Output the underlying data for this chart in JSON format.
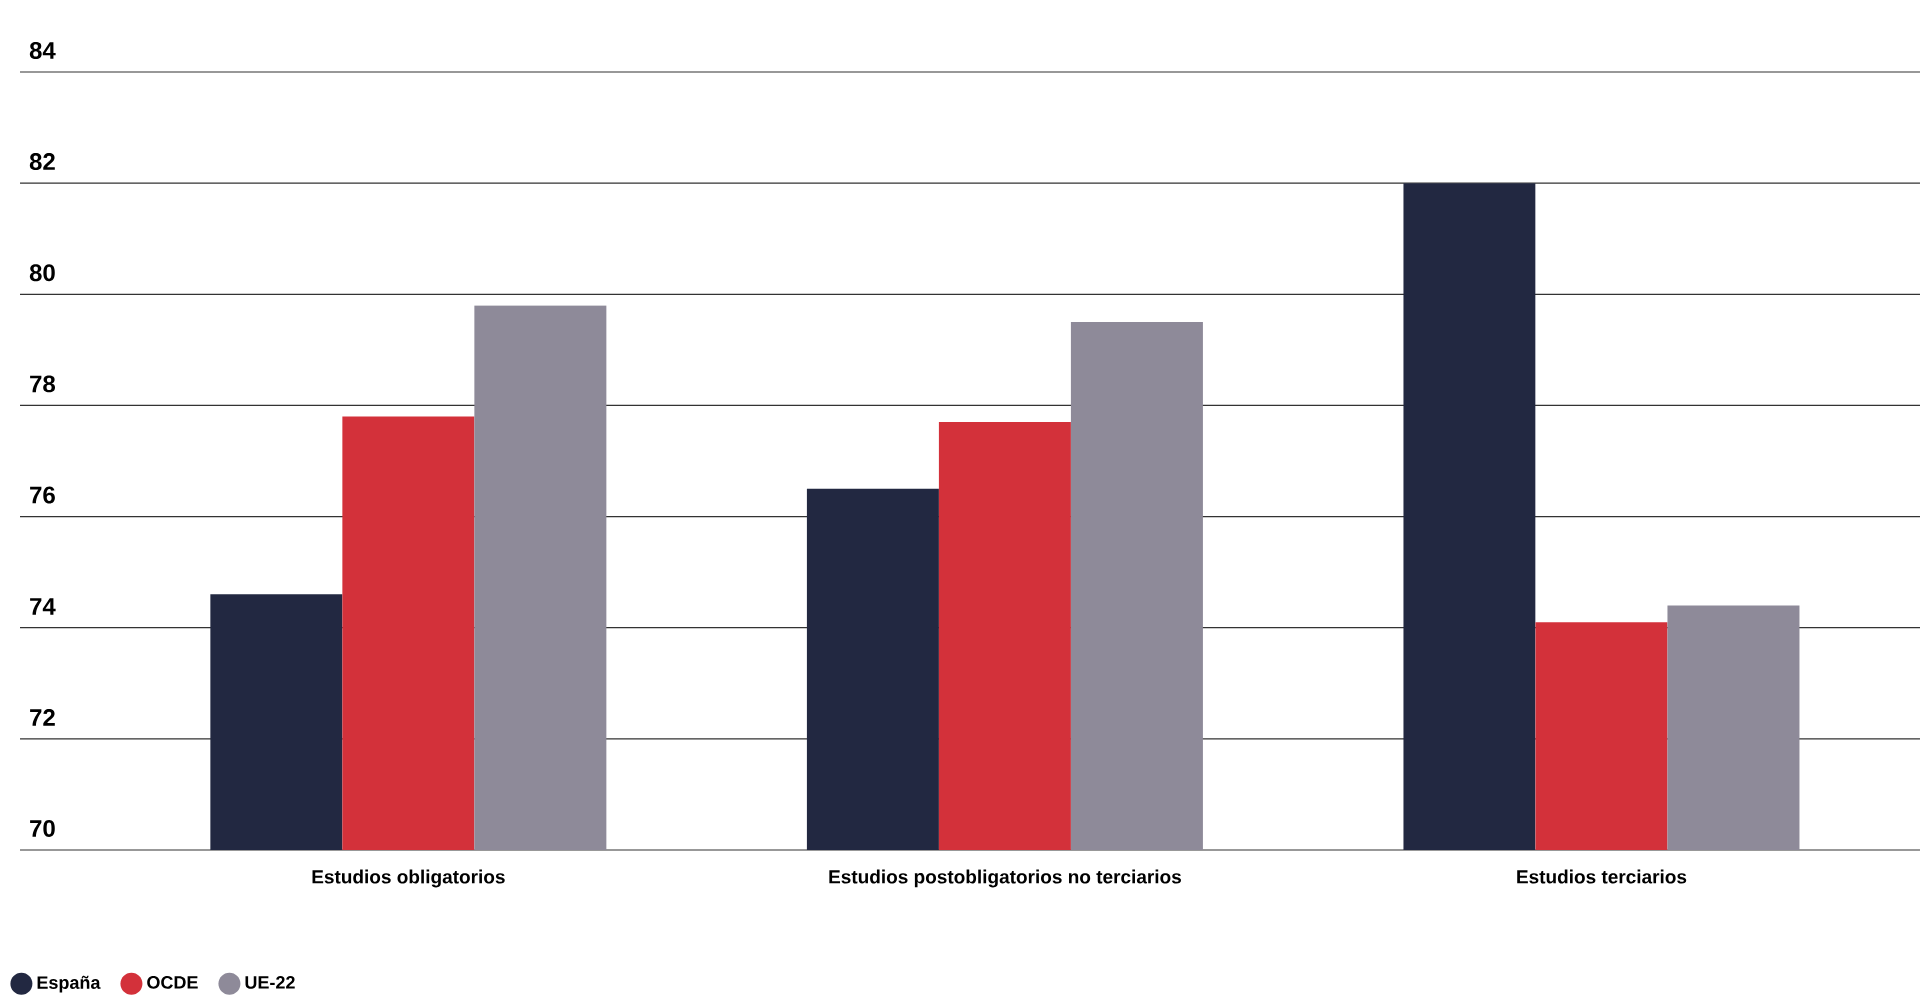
{
  "chart_data": {
    "type": "bar",
    "categories": [
      "Estudios obligatorios",
      "Estudios postobligatorios no terciarios",
      "Estudios terciarios"
    ],
    "series": [
      {
        "name": "España",
        "color": "#222841",
        "values": [
          74.6,
          76.5,
          82.0
        ]
      },
      {
        "name": "OCDE",
        "color": "#d3313a",
        "values": [
          77.8,
          77.7,
          74.1
        ]
      },
      {
        "name": "UE-22",
        "color": "#8e8a99",
        "values": [
          79.8,
          79.5,
          74.4
        ]
      }
    ],
    "ylim": [
      70,
      84
    ],
    "yticks": [
      70,
      72,
      74,
      76,
      78,
      80,
      82,
      84
    ],
    "grid": "y",
    "legend": "bottom left"
  }
}
